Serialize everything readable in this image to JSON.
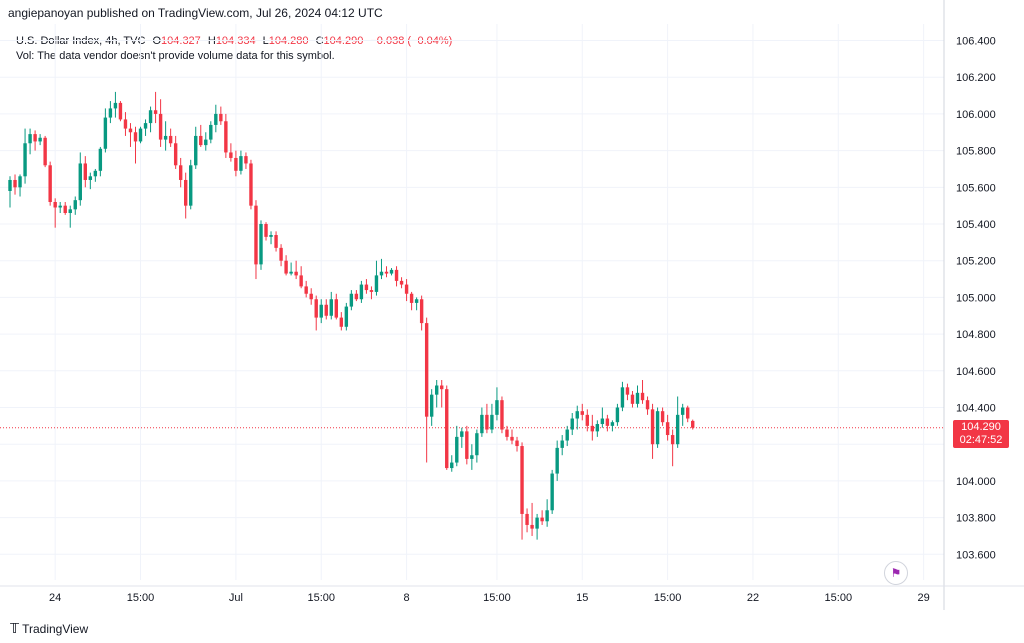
{
  "header": {
    "publisher_line": "angiepanoyan published on TradingView.com, Jul 26, 2024 04:12 UTC"
  },
  "legend": {
    "symbol": "U.S. Dollar Index, 4h, TVC",
    "o_label": "O",
    "o_value": "104.327",
    "h_label": "H",
    "h_value": "104.334",
    "l_label": "L",
    "l_value": "104.280",
    "c_label": "C",
    "c_value": "104.290",
    "change": "−0.038 (−0.04%)",
    "volume_note": "Vol: The data vendor doesn't provide volume data for this symbol."
  },
  "last_price": {
    "price": "104.290",
    "countdown": "02:47:52"
  },
  "footer": {
    "brand": "TradingView"
  },
  "colors": {
    "up": "#089981",
    "down": "#f23645",
    "grid": "#f0f3fa",
    "text": "#131722"
  },
  "icons": {
    "logo": "tradingview-logo-icon",
    "flag": "us-flag-icon"
  },
  "chart_data": {
    "type": "candlestick",
    "ylim": [
      103.46,
      106.49
    ],
    "y_ticks": [
      "106.400",
      "106.200",
      "106.000",
      "105.800",
      "105.600",
      "105.400",
      "105.200",
      "105.000",
      "104.800",
      "104.600",
      "104.400",
      "104.200",
      "104.000",
      "103.800",
      "103.600"
    ],
    "y_tick_values": [
      106.4,
      106.2,
      106.0,
      105.8,
      105.6,
      105.4,
      105.2,
      105.0,
      104.8,
      104.6,
      104.4,
      104.2,
      104.0,
      103.8,
      103.6
    ],
    "x_ticks": [
      {
        "label": "24",
        "index": 9
      },
      {
        "label": "15:00",
        "index": 26
      },
      {
        "label": "Jul",
        "index": 45
      },
      {
        "label": "15:00",
        "index": 62
      },
      {
        "label": "8",
        "index": 79
      },
      {
        "label": "15:00",
        "index": 97
      },
      {
        "label": "15",
        "index": 114
      },
      {
        "label": "15:00",
        "index": 131
      },
      {
        "label": "22",
        "index": 148
      },
      {
        "label": "15:00",
        "index": 165
      },
      {
        "label": "29",
        "index": 182
      }
    ],
    "last_close": 104.29,
    "candles": [
      {
        "o": 105.58,
        "h": 105.66,
        "l": 105.49,
        "c": 105.64
      },
      {
        "o": 105.64,
        "h": 105.67,
        "l": 105.56,
        "c": 105.6
      },
      {
        "o": 105.6,
        "h": 105.67,
        "l": 105.55,
        "c": 105.66
      },
      {
        "o": 105.66,
        "h": 105.92,
        "l": 105.62,
        "c": 105.84
      },
      {
        "o": 105.84,
        "h": 105.92,
        "l": 105.78,
        "c": 105.89
      },
      {
        "o": 105.89,
        "h": 105.91,
        "l": 105.8,
        "c": 105.85
      },
      {
        "o": 105.85,
        "h": 105.89,
        "l": 105.83,
        "c": 105.87
      },
      {
        "o": 105.87,
        "h": 105.88,
        "l": 105.71,
        "c": 105.72
      },
      {
        "o": 105.72,
        "h": 105.74,
        "l": 105.5,
        "c": 105.52
      },
      {
        "o": 105.52,
        "h": 105.54,
        "l": 105.38,
        "c": 105.49
      },
      {
        "o": 105.49,
        "h": 105.52,
        "l": 105.46,
        "c": 105.5
      },
      {
        "o": 105.5,
        "h": 105.52,
        "l": 105.45,
        "c": 105.46
      },
      {
        "o": 105.46,
        "h": 105.5,
        "l": 105.38,
        "c": 105.48
      },
      {
        "o": 105.48,
        "h": 105.55,
        "l": 105.45,
        "c": 105.53
      },
      {
        "o": 105.53,
        "h": 105.79,
        "l": 105.5,
        "c": 105.73
      },
      {
        "o": 105.73,
        "h": 105.77,
        "l": 105.6,
        "c": 105.64
      },
      {
        "o": 105.64,
        "h": 105.68,
        "l": 105.59,
        "c": 105.66
      },
      {
        "o": 105.66,
        "h": 105.7,
        "l": 105.63,
        "c": 105.69
      },
      {
        "o": 105.69,
        "h": 105.82,
        "l": 105.66,
        "c": 105.81
      },
      {
        "o": 105.81,
        "h": 106.03,
        "l": 105.79,
        "c": 105.98
      },
      {
        "o": 105.98,
        "h": 106.07,
        "l": 105.95,
        "c": 106.03
      },
      {
        "o": 106.03,
        "h": 106.12,
        "l": 105.98,
        "c": 106.06
      },
      {
        "o": 106.06,
        "h": 106.07,
        "l": 105.96,
        "c": 105.97
      },
      {
        "o": 105.97,
        "h": 106.01,
        "l": 105.88,
        "c": 105.92
      },
      {
        "o": 105.92,
        "h": 105.95,
        "l": 105.82,
        "c": 105.9
      },
      {
        "o": 105.9,
        "h": 105.93,
        "l": 105.73,
        "c": 105.85
      },
      {
        "o": 105.85,
        "h": 105.93,
        "l": 105.84,
        "c": 105.92
      },
      {
        "o": 105.92,
        "h": 105.97,
        "l": 105.88,
        "c": 105.95
      },
      {
        "o": 105.95,
        "h": 106.04,
        "l": 105.9,
        "c": 106.02
      },
      {
        "o": 106.02,
        "h": 106.12,
        "l": 105.95,
        "c": 106.0
      },
      {
        "o": 106.0,
        "h": 106.08,
        "l": 105.82,
        "c": 105.86
      },
      {
        "o": 105.86,
        "h": 105.96,
        "l": 105.8,
        "c": 105.88
      },
      {
        "o": 105.88,
        "h": 105.92,
        "l": 105.82,
        "c": 105.84
      },
      {
        "o": 105.84,
        "h": 105.88,
        "l": 105.7,
        "c": 105.72
      },
      {
        "o": 105.72,
        "h": 105.76,
        "l": 105.6,
        "c": 105.64
      },
      {
        "o": 105.64,
        "h": 105.68,
        "l": 105.43,
        "c": 105.5
      },
      {
        "o": 105.5,
        "h": 105.75,
        "l": 105.48,
        "c": 105.72
      },
      {
        "o": 105.72,
        "h": 105.93,
        "l": 105.7,
        "c": 105.88
      },
      {
        "o": 105.88,
        "h": 105.94,
        "l": 105.82,
        "c": 105.83
      },
      {
        "o": 105.83,
        "h": 105.9,
        "l": 105.8,
        "c": 105.86
      },
      {
        "o": 105.86,
        "h": 105.96,
        "l": 105.84,
        "c": 105.94
      },
      {
        "o": 105.94,
        "h": 106.05,
        "l": 105.9,
        "c": 106.0
      },
      {
        "o": 106.0,
        "h": 106.04,
        "l": 105.94,
        "c": 105.96
      },
      {
        "o": 105.96,
        "h": 106.0,
        "l": 105.76,
        "c": 105.79
      },
      {
        "o": 105.79,
        "h": 105.84,
        "l": 105.74,
        "c": 105.76
      },
      {
        "o": 105.76,
        "h": 105.8,
        "l": 105.66,
        "c": 105.69
      },
      {
        "o": 105.69,
        "h": 105.8,
        "l": 105.67,
        "c": 105.77
      },
      {
        "o": 105.77,
        "h": 105.79,
        "l": 105.7,
        "c": 105.73
      },
      {
        "o": 105.73,
        "h": 105.75,
        "l": 105.48,
        "c": 105.5
      },
      {
        "o": 105.5,
        "h": 105.53,
        "l": 105.1,
        "c": 105.18
      },
      {
        "o": 105.18,
        "h": 105.42,
        "l": 105.15,
        "c": 105.4
      },
      {
        "o": 105.4,
        "h": 105.41,
        "l": 105.31,
        "c": 105.33
      },
      {
        "o": 105.33,
        "h": 105.36,
        "l": 105.29,
        "c": 105.34
      },
      {
        "o": 105.34,
        "h": 105.36,
        "l": 105.25,
        "c": 105.27
      },
      {
        "o": 105.27,
        "h": 105.29,
        "l": 105.17,
        "c": 105.2
      },
      {
        "o": 105.2,
        "h": 105.23,
        "l": 105.12,
        "c": 105.13
      },
      {
        "o": 105.13,
        "h": 105.19,
        "l": 105.12,
        "c": 105.14
      },
      {
        "o": 105.14,
        "h": 105.2,
        "l": 105.1,
        "c": 105.12
      },
      {
        "o": 105.12,
        "h": 105.17,
        "l": 105.05,
        "c": 105.06
      },
      {
        "o": 105.06,
        "h": 105.09,
        "l": 105.0,
        "c": 105.02
      },
      {
        "o": 105.02,
        "h": 105.05,
        "l": 104.96,
        "c": 104.99
      },
      {
        "o": 104.99,
        "h": 105.01,
        "l": 104.82,
        "c": 104.89
      },
      {
        "o": 104.89,
        "h": 104.99,
        "l": 104.86,
        "c": 104.96
      },
      {
        "o": 104.96,
        "h": 104.99,
        "l": 104.88,
        "c": 104.9
      },
      {
        "o": 104.9,
        "h": 105.03,
        "l": 104.88,
        "c": 104.99
      },
      {
        "o": 104.99,
        "h": 105.02,
        "l": 104.88,
        "c": 104.89
      },
      {
        "o": 104.89,
        "h": 104.92,
        "l": 104.82,
        "c": 104.84
      },
      {
        "o": 104.84,
        "h": 104.97,
        "l": 104.82,
        "c": 104.95
      },
      {
        "o": 104.95,
        "h": 105.04,
        "l": 104.93,
        "c": 105.02
      },
      {
        "o": 105.02,
        "h": 105.04,
        "l": 104.98,
        "c": 104.99
      },
      {
        "o": 104.99,
        "h": 105.09,
        "l": 104.97,
        "c": 105.07
      },
      {
        "o": 105.07,
        "h": 105.1,
        "l": 105.02,
        "c": 105.04
      },
      {
        "o": 105.04,
        "h": 105.06,
        "l": 104.99,
        "c": 105.03
      },
      {
        "o": 105.03,
        "h": 105.2,
        "l": 105.01,
        "c": 105.12
      },
      {
        "o": 105.12,
        "h": 105.21,
        "l": 105.1,
        "c": 105.14
      },
      {
        "o": 105.14,
        "h": 105.17,
        "l": 105.11,
        "c": 105.13
      },
      {
        "o": 105.13,
        "h": 105.16,
        "l": 105.12,
        "c": 105.15
      },
      {
        "o": 105.15,
        "h": 105.17,
        "l": 105.06,
        "c": 105.09
      },
      {
        "o": 105.09,
        "h": 105.11,
        "l": 105.05,
        "c": 105.07
      },
      {
        "o": 105.07,
        "h": 105.1,
        "l": 104.98,
        "c": 105.02
      },
      {
        "o": 105.02,
        "h": 105.03,
        "l": 104.93,
        "c": 104.97
      },
      {
        "o": 104.97,
        "h": 105.0,
        "l": 104.93,
        "c": 104.99
      },
      {
        "o": 104.99,
        "h": 105.01,
        "l": 104.82,
        "c": 104.86
      },
      {
        "o": 104.86,
        "h": 104.89,
        "l": 104.1,
        "c": 104.35
      },
      {
        "o": 104.35,
        "h": 104.5,
        "l": 104.3,
        "c": 104.47
      },
      {
        "o": 104.47,
        "h": 104.55,
        "l": 104.4,
        "c": 104.52
      },
      {
        "o": 104.52,
        "h": 104.55,
        "l": 104.4,
        "c": 104.5
      },
      {
        "o": 104.5,
        "h": 104.52,
        "l": 104.06,
        "c": 104.07
      },
      {
        "o": 104.07,
        "h": 104.14,
        "l": 104.05,
        "c": 104.1
      },
      {
        "o": 104.1,
        "h": 104.3,
        "l": 104.08,
        "c": 104.24
      },
      {
        "o": 104.24,
        "h": 104.29,
        "l": 104.18,
        "c": 104.27
      },
      {
        "o": 104.27,
        "h": 104.3,
        "l": 104.09,
        "c": 104.12
      },
      {
        "o": 104.12,
        "h": 104.2,
        "l": 104.06,
        "c": 104.14
      },
      {
        "o": 104.14,
        "h": 104.28,
        "l": 104.1,
        "c": 104.26
      },
      {
        "o": 104.26,
        "h": 104.4,
        "l": 104.24,
        "c": 104.36
      },
      {
        "o": 104.36,
        "h": 104.42,
        "l": 104.26,
        "c": 104.28
      },
      {
        "o": 104.28,
        "h": 104.42,
        "l": 104.26,
        "c": 104.36
      },
      {
        "o": 104.36,
        "h": 104.51,
        "l": 104.33,
        "c": 104.44
      },
      {
        "o": 104.44,
        "h": 104.46,
        "l": 104.26,
        "c": 104.28
      },
      {
        "o": 104.28,
        "h": 104.3,
        "l": 104.22,
        "c": 104.24
      },
      {
        "o": 104.24,
        "h": 104.28,
        "l": 104.2,
        "c": 104.22
      },
      {
        "o": 104.22,
        "h": 104.24,
        "l": 104.16,
        "c": 104.19
      },
      {
        "o": 104.19,
        "h": 104.21,
        "l": 103.68,
        "c": 103.82
      },
      {
        "o": 103.82,
        "h": 103.85,
        "l": 103.72,
        "c": 103.76
      },
      {
        "o": 103.76,
        "h": 103.88,
        "l": 103.7,
        "c": 103.74
      },
      {
        "o": 103.74,
        "h": 103.82,
        "l": 103.68,
        "c": 103.8
      },
      {
        "o": 103.8,
        "h": 103.84,
        "l": 103.76,
        "c": 103.78
      },
      {
        "o": 103.78,
        "h": 103.9,
        "l": 103.75,
        "c": 103.84
      },
      {
        "o": 103.84,
        "h": 104.06,
        "l": 103.82,
        "c": 104.04
      },
      {
        "o": 104.04,
        "h": 104.22,
        "l": 104.0,
        "c": 104.18
      },
      {
        "o": 104.18,
        "h": 104.25,
        "l": 104.14,
        "c": 104.22
      },
      {
        "o": 104.22,
        "h": 104.3,
        "l": 104.19,
        "c": 104.28
      },
      {
        "o": 104.28,
        "h": 104.37,
        "l": 104.25,
        "c": 104.34
      },
      {
        "o": 104.34,
        "h": 104.41,
        "l": 104.28,
        "c": 104.38
      },
      {
        "o": 104.38,
        "h": 104.42,
        "l": 104.33,
        "c": 104.36
      },
      {
        "o": 104.36,
        "h": 104.39,
        "l": 104.27,
        "c": 104.3
      },
      {
        "o": 104.3,
        "h": 104.36,
        "l": 104.22,
        "c": 104.27
      },
      {
        "o": 104.27,
        "h": 104.33,
        "l": 104.24,
        "c": 104.31
      },
      {
        "o": 104.31,
        "h": 104.4,
        "l": 104.29,
        "c": 104.34
      },
      {
        "o": 104.34,
        "h": 104.36,
        "l": 104.27,
        "c": 104.3
      },
      {
        "o": 104.3,
        "h": 104.33,
        "l": 104.27,
        "c": 104.32
      },
      {
        "o": 104.32,
        "h": 104.42,
        "l": 104.3,
        "c": 104.4
      },
      {
        "o": 104.4,
        "h": 104.54,
        "l": 104.38,
        "c": 104.51
      },
      {
        "o": 104.51,
        "h": 104.53,
        "l": 104.44,
        "c": 104.47
      },
      {
        "o": 104.47,
        "h": 104.49,
        "l": 104.4,
        "c": 104.42
      },
      {
        "o": 104.42,
        "h": 104.52,
        "l": 104.4,
        "c": 104.48
      },
      {
        "o": 104.48,
        "h": 104.55,
        "l": 104.42,
        "c": 104.44
      },
      {
        "o": 104.44,
        "h": 104.46,
        "l": 104.36,
        "c": 104.39
      },
      {
        "o": 104.39,
        "h": 104.42,
        "l": 104.12,
        "c": 104.2
      },
      {
        "o": 104.2,
        "h": 104.4,
        "l": 104.18,
        "c": 104.38
      },
      {
        "o": 104.38,
        "h": 104.4,
        "l": 104.3,
        "c": 104.32
      },
      {
        "o": 104.32,
        "h": 104.36,
        "l": 104.22,
        "c": 104.25
      },
      {
        "o": 104.25,
        "h": 104.28,
        "l": 104.08,
        "c": 104.2
      },
      {
        "o": 104.2,
        "h": 104.46,
        "l": 104.18,
        "c": 104.36
      },
      {
        "o": 104.36,
        "h": 104.42,
        "l": 104.3,
        "c": 104.4
      },
      {
        "o": 104.4,
        "h": 104.41,
        "l": 104.32,
        "c": 104.34
      },
      {
        "o": 104.327,
        "h": 104.334,
        "l": 104.28,
        "c": 104.29
      }
    ]
  }
}
